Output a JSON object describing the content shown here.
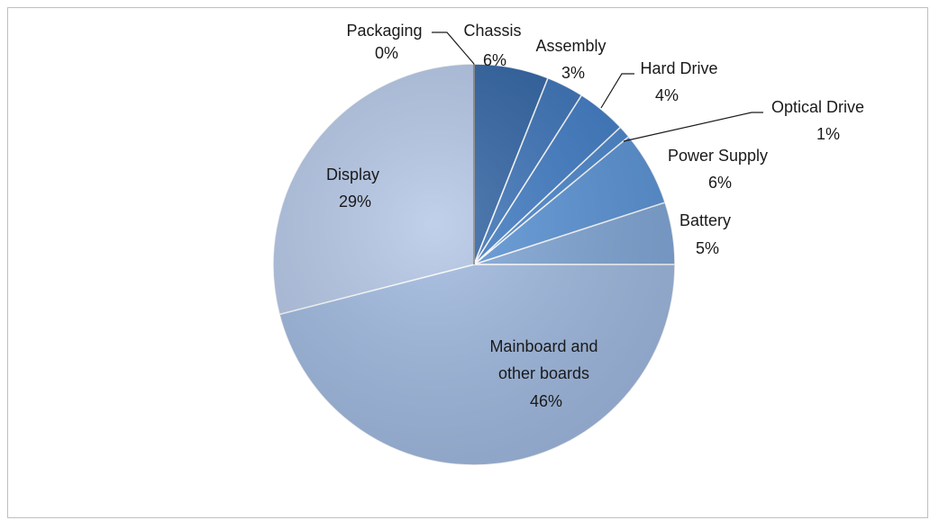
{
  "chart_data": {
    "type": "pie",
    "title": "",
    "slices": [
      {
        "name": "Chassis",
        "value": 6,
        "label": "6%",
        "color": "#2e62a3"
      },
      {
        "name": "Assembly",
        "value": 3,
        "label": "3%",
        "color": "#3a72b8"
      },
      {
        "name": "Hard Drive",
        "value": 4,
        "label": "4%",
        "color": "#3f7bc4"
      },
      {
        "name": "Optical Drive",
        "value": 1,
        "label": "1%",
        "color": "#4a86cc"
      },
      {
        "name": "Power Supply",
        "value": 6,
        "label": "6%",
        "color": "#5a93d6"
      },
      {
        "name": "Battery",
        "value": 5,
        "label": "5%",
        "color": "#7fa6d6"
      },
      {
        "name": "Mainboard and other boards",
        "value": 46,
        "label": "46%",
        "color": "#9fb9e0"
      },
      {
        "name": "Display",
        "value": 29,
        "label": "29%",
        "color": "#b3c6e6"
      },
      {
        "name": "Packaging",
        "value": 0,
        "label": "0%",
        "color": "#c9d6ec"
      }
    ],
    "labels": {
      "chassis": [
        "Chassis",
        "6%"
      ],
      "assembly": [
        "Assembly",
        "3%"
      ],
      "hard_drive": [
        "Hard Drive",
        "4%"
      ],
      "optical_drive": [
        "Optical Drive",
        "1%"
      ],
      "power_supply": [
        "Power Supply",
        "6%"
      ],
      "battery": [
        "Battery",
        "5%"
      ],
      "mainboard": [
        "Mainboard and",
        "other boards",
        "46%"
      ],
      "display": [
        "Display",
        "29%"
      ],
      "packaging": [
        "Packaging",
        "0%"
      ]
    }
  }
}
